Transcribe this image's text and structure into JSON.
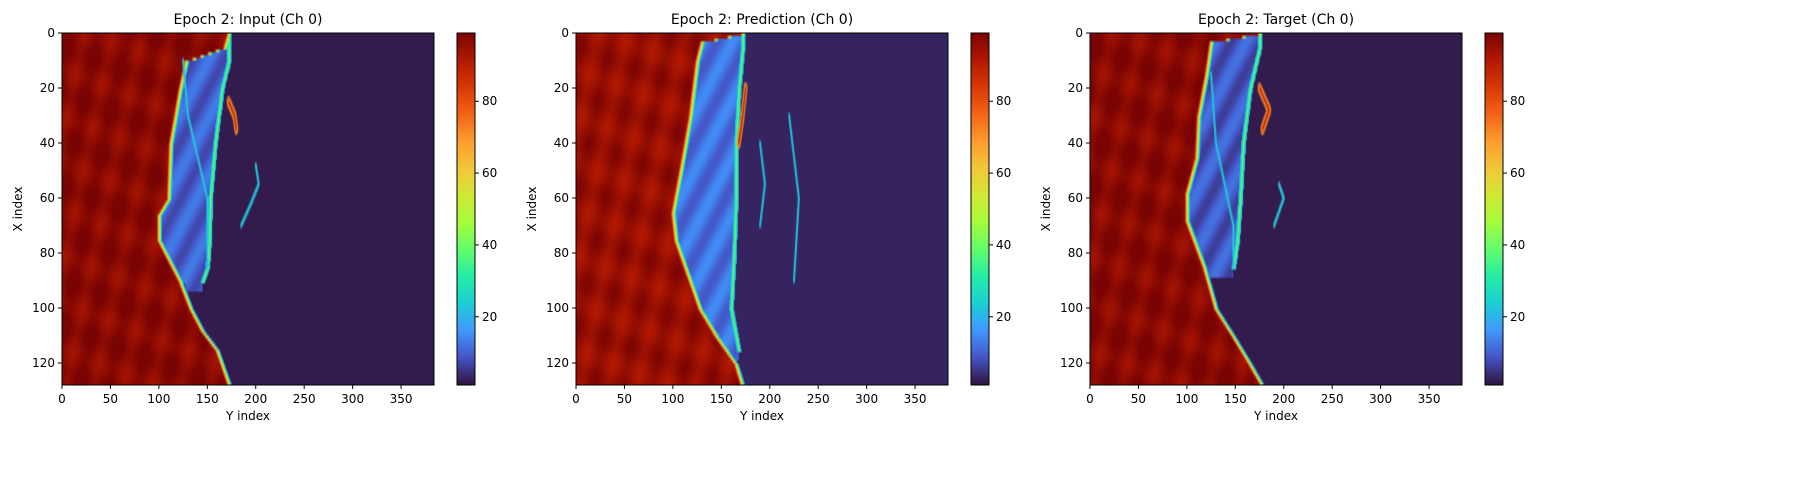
{
  "figure": {
    "background": "#ffffff"
  },
  "colormap": {
    "name": "turbo",
    "stops": [
      "#30123b",
      "#4454c4",
      "#4196ff",
      "#1bcfd4",
      "#24eca6",
      "#61fc6c",
      "#a4fc3b",
      "#d1e834",
      "#f3c63a",
      "#fe9b2d",
      "#f36315",
      "#d93806",
      "#b11901",
      "#7a0403"
    ]
  },
  "chart_data": [
    {
      "type": "heatmap",
      "title": "Epoch 2: Input (Ch 0)",
      "xlabel": "Y index",
      "ylabel": "X index",
      "x_range": [
        0,
        384
      ],
      "y_range": [
        0,
        128
      ],
      "x_ticks": [
        0,
        50,
        100,
        150,
        200,
        250,
        300,
        350
      ],
      "y_ticks": [
        0,
        20,
        40,
        60,
        80,
        100,
        120
      ],
      "value_range": [
        1,
        99
      ],
      "colorbar_ticks": [
        20,
        40,
        60,
        80
      ],
      "field": {
        "left_value": 97,
        "right_value": 2,
        "cavity_value": 10,
        "front": [
          [
            0,
            172
          ],
          [
            5,
            168
          ],
          [
            10,
            128
          ],
          [
            20,
            122
          ],
          [
            40,
            112
          ],
          [
            60,
            110
          ],
          [
            66,
            100
          ],
          [
            75,
            100
          ],
          [
            90,
            122
          ],
          [
            100,
            133
          ],
          [
            108,
            145
          ],
          [
            115,
            160
          ],
          [
            128,
            173
          ]
        ],
        "cavity": [
          [
            10,
            172
          ],
          [
            20,
            165
          ],
          [
            40,
            158
          ],
          [
            60,
            153
          ],
          [
            75,
            152
          ],
          [
            85,
            150
          ],
          [
            90,
            145
          ]
        ],
        "plume": [
          [
            25,
            172
          ],
          [
            30,
            178
          ],
          [
            35,
            180
          ]
        ],
        "filaments": [
          [
            [
              10,
              125
            ],
            [
              30,
              130
            ],
            [
              60,
              150
            ],
            [
              85,
              150
            ]
          ],
          [
            [
              48,
              200
            ],
            [
              55,
              203
            ],
            [
              62,
              195
            ],
            [
              70,
              185
            ]
          ]
        ]
      }
    },
    {
      "type": "heatmap",
      "title": "Epoch 2: Prediction (Ch 0)",
      "xlabel": "Y index",
      "ylabel": "X index",
      "x_range": [
        0,
        384
      ],
      "y_range": [
        0,
        128
      ],
      "x_ticks": [
        0,
        50,
        100,
        150,
        200,
        250,
        300,
        350
      ],
      "y_ticks": [
        0,
        20,
        40,
        60,
        80,
        100,
        120
      ],
      "value_range": [
        1,
        99
      ],
      "colorbar_ticks": [
        20,
        40,
        60,
        80
      ],
      "field": {
        "left_value": 95,
        "right_value": 3,
        "cavity_value": 12,
        "front": [
          [
            0,
            172
          ],
          [
            3,
            130
          ],
          [
            10,
            125
          ],
          [
            30,
            118
          ],
          [
            50,
            108
          ],
          [
            65,
            100
          ],
          [
            75,
            103
          ],
          [
            90,
            118
          ],
          [
            100,
            128
          ],
          [
            110,
            145
          ],
          [
            120,
            165
          ],
          [
            128,
            172
          ]
        ],
        "cavity": [
          [
            5,
            172
          ],
          [
            20,
            168
          ],
          [
            40,
            165
          ],
          [
            60,
            165
          ],
          [
            80,
            163
          ],
          [
            100,
            160
          ],
          [
            115,
            168
          ]
        ],
        "plume": [
          [
            20,
            175
          ],
          [
            30,
            172
          ],
          [
            40,
            168
          ]
        ],
        "filaments": [
          [
            [
              40,
              190
            ],
            [
              55,
              195
            ],
            [
              70,
              190
            ]
          ],
          [
            [
              30,
              220
            ],
            [
              60,
              230
            ],
            [
              90,
              225
            ]
          ]
        ]
      }
    },
    {
      "type": "heatmap",
      "title": "Epoch 2: Target (Ch 0)",
      "xlabel": "Y index",
      "ylabel": "X index",
      "x_range": [
        0,
        384
      ],
      "y_range": [
        0,
        128
      ],
      "x_ticks": [
        0,
        50,
        100,
        150,
        200,
        250,
        300,
        350
      ],
      "y_ticks": [
        0,
        20,
        40,
        60,
        80,
        100,
        120
      ],
      "value_range": [
        1,
        99
      ],
      "colorbar_ticks": [
        20,
        40,
        60,
        80
      ],
      "field": {
        "left_value": 97,
        "right_value": 2,
        "cavity_value": 9,
        "front": [
          [
            0,
            175
          ],
          [
            3,
            125
          ],
          [
            15,
            120
          ],
          [
            30,
            112
          ],
          [
            45,
            110
          ],
          [
            58,
            100
          ],
          [
            68,
            100
          ],
          [
            85,
            118
          ],
          [
            100,
            130
          ],
          [
            110,
            148
          ],
          [
            120,
            165
          ],
          [
            128,
            178
          ]
        ],
        "cavity": [
          [
            5,
            175
          ],
          [
            20,
            165
          ],
          [
            40,
            158
          ],
          [
            60,
            155
          ],
          [
            75,
            152
          ],
          [
            85,
            148
          ]
        ],
        "plume": [
          [
            20,
            175
          ],
          [
            28,
            185
          ],
          [
            35,
            178
          ]
        ],
        "filaments": [
          [
            [
              15,
              125
            ],
            [
              40,
              130
            ],
            [
              70,
              148
            ],
            [
              85,
              148
            ]
          ],
          [
            [
              55,
              195
            ],
            [
              60,
              200
            ],
            [
              70,
              190
            ]
          ]
        ]
      }
    }
  ]
}
